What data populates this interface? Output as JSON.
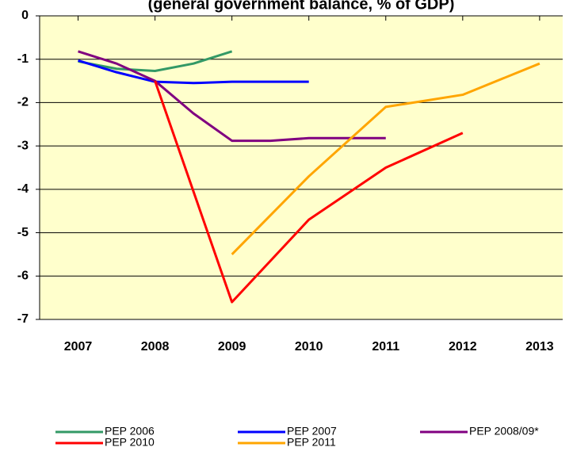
{
  "chart_data": {
    "type": "line",
    "title": "(general government balance, % of GDP)",
    "xlim": [
      2006.5,
      2013.3
    ],
    "xticks": [
      2007,
      2008,
      2009,
      2010,
      2011,
      2012,
      2013
    ],
    "ylim": [
      -7,
      0
    ],
    "yticks": [
      0,
      -1,
      -2,
      -3,
      -4,
      -5,
      -6,
      -7
    ],
    "grid": true,
    "series": [
      {
        "name": "PEP 2006",
        "color": "#339966",
        "x": [
          2007,
          2007.5,
          2008,
          2008.5,
          2009
        ],
        "values": [
          -1.05,
          -1.22,
          -1.27,
          -1.1,
          -0.82
        ]
      },
      {
        "name": "PEP 2007",
        "color": "#0000ff",
        "x": [
          2007,
          2007.5,
          2008,
          2008.5,
          2009,
          2010
        ],
        "values": [
          -1.03,
          -1.3,
          -1.52,
          -1.55,
          -1.52,
          -1.52
        ]
      },
      {
        "name": "PEP 2008/09*",
        "color": "#800080",
        "x": [
          2007,
          2007.5,
          2008,
          2008.5,
          2009,
          2009.5,
          2010,
          2011
        ],
        "values": [
          -0.82,
          -1.1,
          -1.5,
          -2.25,
          -2.88,
          -2.88,
          -2.82,
          -2.82
        ]
      },
      {
        "name": "PEP 2010",
        "color": "#ff0000",
        "x": [
          2008,
          2009,
          2010,
          2011,
          2012
        ],
        "values": [
          -1.5,
          -6.6,
          -4.7,
          -3.5,
          -2.7
        ]
      },
      {
        "name": "PEP 2011",
        "color": "#ffa500",
        "x": [
          2009,
          2010,
          2011,
          2012,
          2013
        ],
        "values": [
          -5.5,
          -3.7,
          -2.1,
          -1.82,
          -1.1
        ]
      }
    ]
  }
}
